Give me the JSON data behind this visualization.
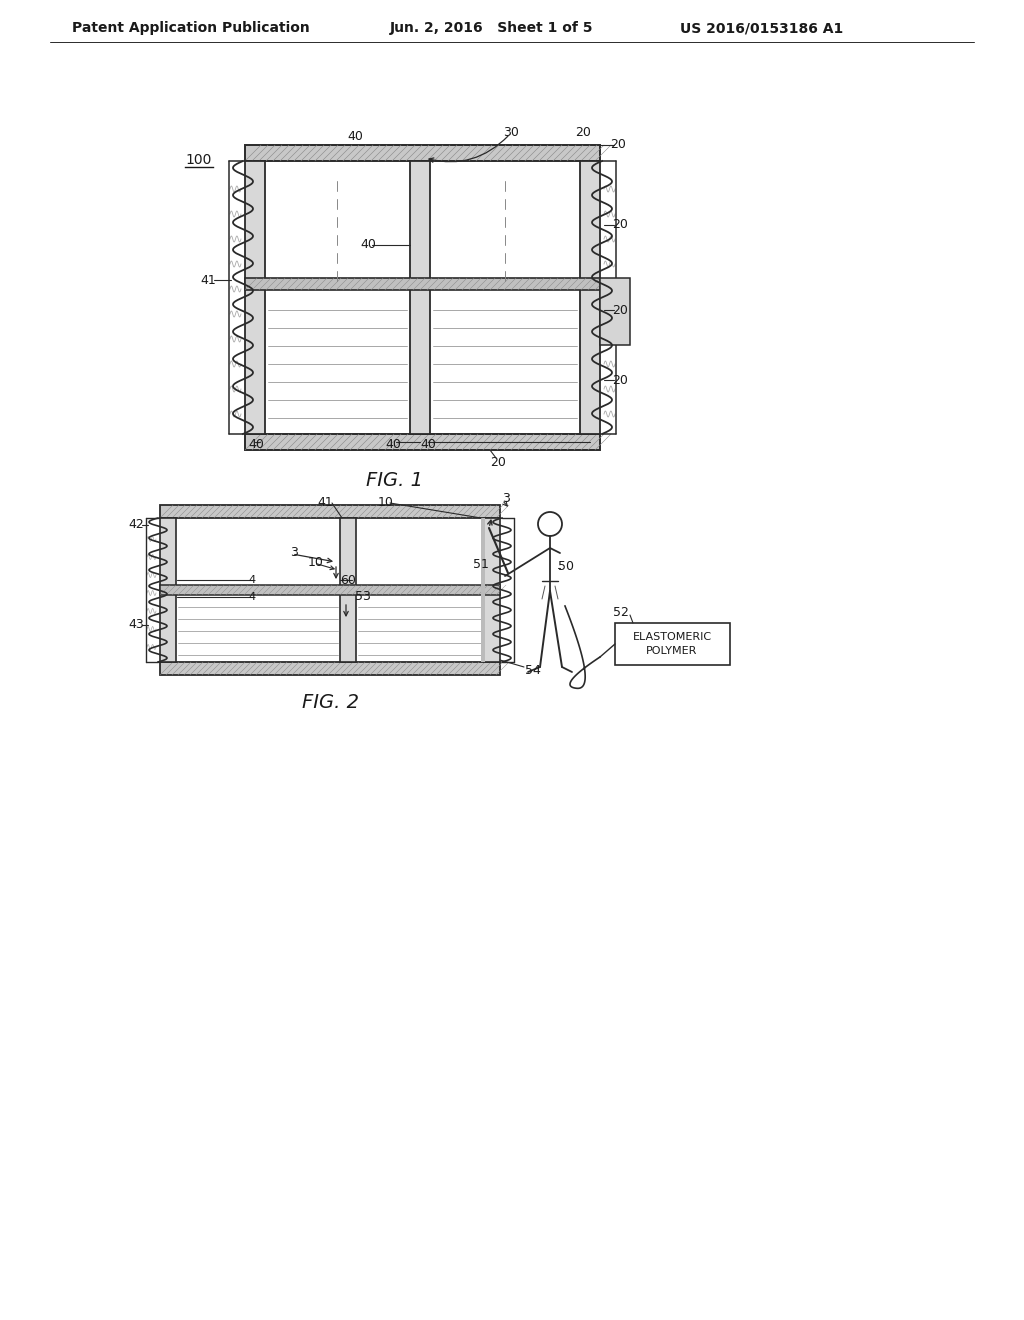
{
  "bg_color": "#ffffff",
  "line_color": "#2a2a2a",
  "text_color": "#1a1a1a",
  "header_left": "Patent Application Publication",
  "header_mid": "Jun. 2, 2016   Sheet 1 of 5",
  "header_right": "US 2016/0153186 A1",
  "fig1_caption": "FIG. 1",
  "fig2_caption": "FIG. 2",
  "fig1_label_100": "100",
  "fig1_label_40_top": "40",
  "fig1_label_30": "30",
  "fig1_label_20_tr": "20",
  "fig1_label_20_r1": "20",
  "fig1_label_20_r2": "20",
  "fig1_label_20_r3": "20",
  "fig1_label_20_bot": "20",
  "fig1_label_41": "41",
  "fig1_label_40c": "40",
  "fig1_label_40bl": "40",
  "fig1_label_40bm": "40",
  "fig1_label_40br": "40",
  "fig2_label_42": "42",
  "fig2_label_43": "43",
  "fig2_label_41": "41",
  "fig2_label_10a": "10",
  "fig2_label_3a": "3",
  "fig2_label_3b": "3",
  "fig2_label_10b": "10",
  "fig2_label_4a": "4",
  "fig2_label_4b": "4",
  "fig2_label_60": "60",
  "fig2_label_53": "53",
  "fig2_label_51": "51",
  "fig2_label_50": "50",
  "fig2_label_52": "52",
  "fig2_label_54": "54",
  "box_text1": "ELASTOMERIC",
  "box_text2": "POLYMER"
}
